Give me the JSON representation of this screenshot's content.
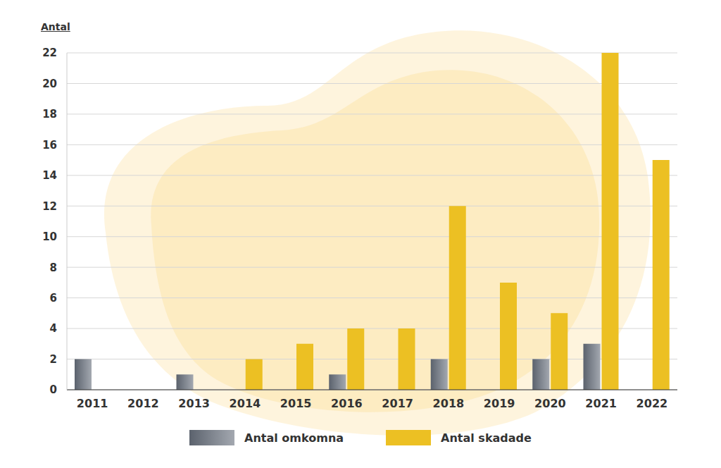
{
  "chart_data": {
    "type": "bar",
    "y_label": "Antal",
    "categories": [
      "2011",
      "2012",
      "2013",
      "2014",
      "2015",
      "2016",
      "2017",
      "2018",
      "2019",
      "2020",
      "2021",
      "2022"
    ],
    "series": [
      {
        "name": "Antal omkomna",
        "color": "#5b626d",
        "values": [
          2,
          0,
          1,
          0,
          0,
          1,
          0,
          2,
          0,
          2,
          3,
          0
        ]
      },
      {
        "name": "Antal skadade",
        "color": "#ecc023",
        "values": [
          0,
          0,
          0,
          2,
          3,
          4,
          4,
          12,
          7,
          5,
          22,
          15
        ]
      }
    ],
    "ylim": [
      0,
      22
    ],
    "yticks": [
      0,
      2,
      4,
      6,
      8,
      10,
      12,
      14,
      16,
      18,
      20,
      22
    ],
    "grid": true,
    "legend": "bottom"
  }
}
